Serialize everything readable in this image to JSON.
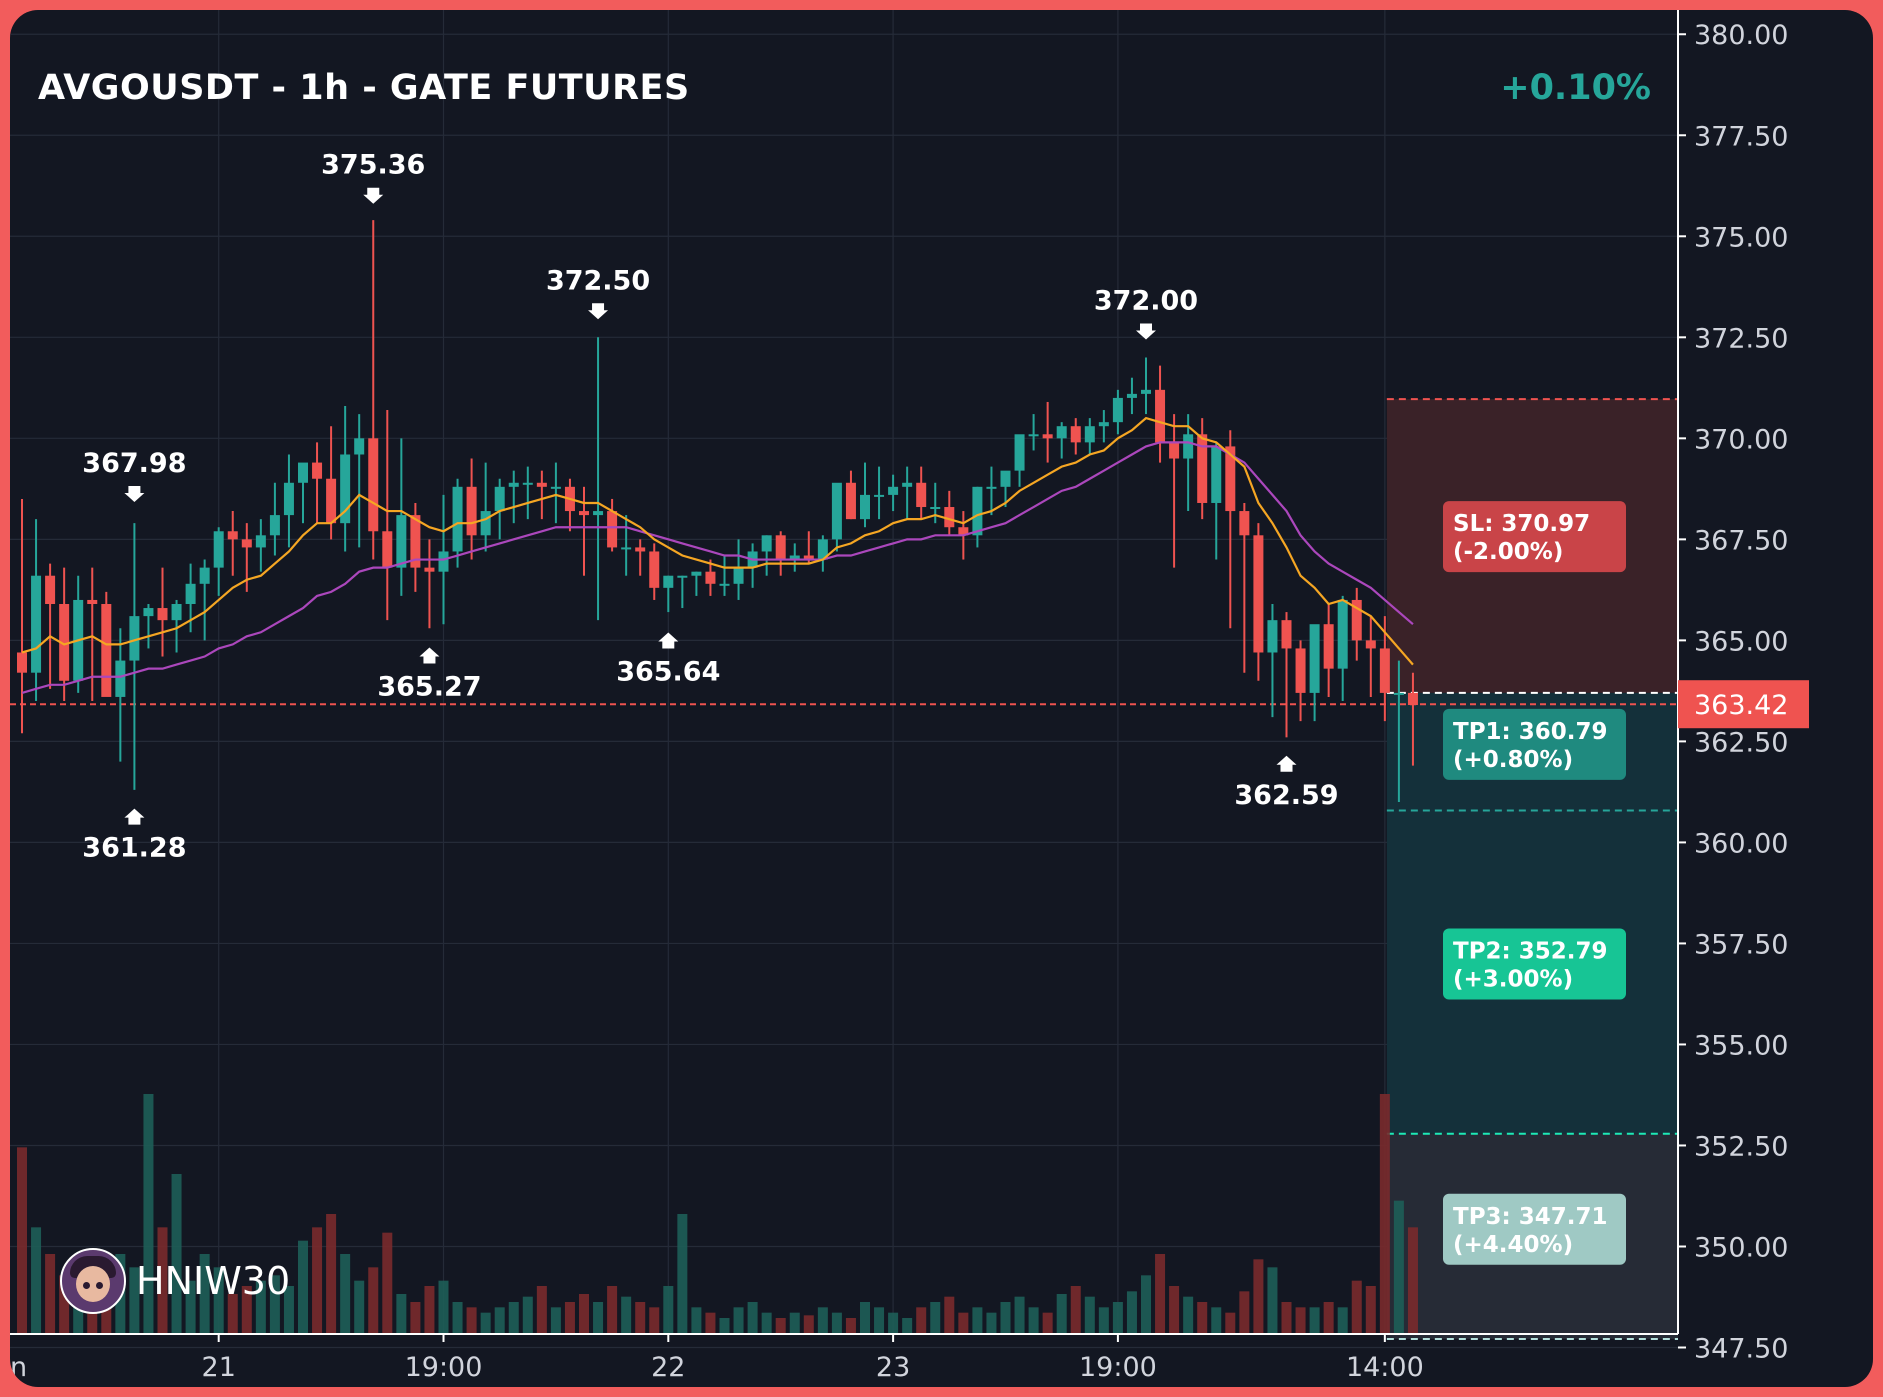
{
  "header": {
    "title": "AVGOUSDT - 1h - GATE FUTURES",
    "change": "+0.10%"
  },
  "watermark": {
    "username": "HNIW30",
    "icon": "avatar-icon"
  },
  "colors": {
    "background": "#131722",
    "frame": "#f25c5c",
    "up": "#26a69a",
    "down": "#ef5350",
    "ema_fast": "#f5a623",
    "ema_slow": "#ab47bc",
    "grid": "#252b38",
    "sl_zone": "#3a2228",
    "tp_zone": "#14303a",
    "tp3_zone": "#262b36"
  },
  "chart_data": {
    "type": "candlestick",
    "title": "AVGOUSDT - 1h - GATE FUTURES",
    "y_axis": {
      "ticks": [
        "380.00",
        "377.50",
        "375.00",
        "372.50",
        "370.00",
        "367.50",
        "365.00",
        "362.50",
        "360.00",
        "357.50",
        "355.00",
        "352.50",
        "350.00",
        "347.50"
      ],
      "ylim": [
        346.3,
        380.6
      ],
      "side": "right"
    },
    "x_axis": {
      "ticks": [
        {
          "label": "21",
          "bar": 14
        },
        {
          "label": "19:00",
          "bar": 30
        },
        {
          "label": "22",
          "bar": 46
        },
        {
          "label": "23",
          "bar": 62
        },
        {
          "label": "19:00",
          "bar": 78
        },
        {
          "label": "14:00",
          "bar": 97
        }
      ],
      "partial_first_label": "n"
    },
    "grid": true,
    "current_price": {
      "value": 363.42,
      "label": "363.42"
    },
    "annotations": [
      {
        "text": "367.98",
        "bar": 8,
        "price": 367.98,
        "type": "high"
      },
      {
        "text": "361.28",
        "bar": 8,
        "price": 361.28,
        "type": "low"
      },
      {
        "text": "375.36",
        "bar": 25,
        "price": 375.36,
        "type": "high"
      },
      {
        "text": "365.27",
        "bar": 29,
        "price": 365.27,
        "type": "low"
      },
      {
        "text": "372.50",
        "bar": 41,
        "price": 372.5,
        "type": "high"
      },
      {
        "text": "365.64",
        "bar": 46,
        "price": 365.64,
        "type": "low"
      },
      {
        "text": "372.00",
        "bar": 80,
        "price": 372.0,
        "type": "high"
      },
      {
        "text": "362.59",
        "bar": 90,
        "price": 362.59,
        "type": "low"
      }
    ],
    "levels": [
      {
        "label": "SL: 370.97",
        "sub": "(-2.00%)",
        "price": 370.97,
        "color": "#ef5350",
        "badge": "#c94448"
      },
      {
        "label": "TP1: 360.79",
        "sub": "(+0.80%)",
        "price": 360.79,
        "color": "#26a69a",
        "badge": "#1f8a7f"
      },
      {
        "label": "TP2: 352.79",
        "sub": "(+3.00%)",
        "price": 352.79,
        "color": "#1de9b6",
        "badge": "#17c595"
      },
      {
        "label": "TP3: 347.71",
        "sub": "(+4.40%)",
        "price": 347.71,
        "color": "#b2dfdb",
        "badge": "#9fc9c4"
      }
    ],
    "entry_price": 363.7,
    "series": [
      {
        "name": "open",
        "values": [
          364.7,
          364.2,
          366.6,
          365.9,
          364.0,
          366.0,
          365.9,
          363.6,
          364.5,
          365.6,
          365.8,
          365.5,
          365.9,
          366.4,
          366.8,
          367.7,
          367.5,
          367.3,
          367.6,
          368.1,
          368.9,
          369.4,
          369.0,
          367.9,
          369.6,
          370.0,
          367.7,
          366.8,
          368.1,
          366.8,
          366.7,
          367.2,
          368.8,
          367.6,
          368.2,
          368.8,
          368.9,
          368.9,
          368.8,
          368.8,
          368.2,
          368.1,
          368.2,
          367.3,
          367.3,
          367.2,
          366.3,
          366.6,
          366.6,
          366.7,
          366.4,
          366.4,
          366.8,
          367.2,
          367.6,
          367.0,
          367.1,
          367.0,
          367.5,
          368.9,
          368.0,
          368.6,
          368.6,
          368.8,
          368.9,
          368.3,
          368.3,
          367.8,
          367.6,
          368.8,
          368.8,
          369.2,
          370.1,
          370.1,
          370.0,
          370.3,
          369.9,
          370.3,
          370.4,
          371.0,
          371.1,
          371.2,
          369.9,
          369.5,
          370.1,
          368.4,
          369.8,
          368.2,
          367.6,
          364.7,
          365.5,
          364.8,
          363.7,
          365.4,
          364.3,
          366.0,
          365.0,
          364.8,
          363.7,
          363.7
        ]
      },
      {
        "name": "high",
        "values": [
          368.5,
          368.0,
          366.9,
          366.8,
          366.6,
          366.8,
          366.2,
          365.3,
          367.9,
          365.9,
          366.8,
          366.0,
          366.9,
          367.0,
          367.8,
          368.2,
          367.9,
          368.0,
          368.9,
          369.6,
          369.3,
          369.9,
          370.3,
          370.8,
          370.6,
          375.4,
          370.7,
          370.0,
          368.4,
          367.5,
          368.6,
          369.0,
          369.5,
          369.4,
          369.0,
          369.2,
          369.3,
          369.2,
          369.4,
          369.0,
          368.8,
          372.5,
          368.5,
          368.1,
          367.5,
          367.4,
          366.6,
          366.6,
          366.7,
          367.0,
          367.1,
          367.5,
          367.4,
          367.6,
          367.7,
          367.4,
          367.7,
          367.6,
          368.4,
          369.2,
          369.4,
          369.3,
          369.1,
          369.3,
          369.3,
          368.9,
          368.7,
          368.2,
          368.8,
          369.3,
          369.0,
          369.7,
          370.6,
          370.9,
          370.4,
          370.5,
          370.5,
          370.7,
          371.2,
          371.5,
          372.0,
          371.8,
          370.6,
          370.6,
          370.5,
          369.9,
          370.2,
          368.4,
          367.9,
          365.9,
          365.7,
          365.0,
          364.7,
          365.9,
          366.1,
          366.3,
          365.6,
          365.6,
          364.5,
          364.2
        ]
      },
      {
        "name": "low",
        "values": [
          362.7,
          363.5,
          363.8,
          363.5,
          363.7,
          363.5,
          363.8,
          362.0,
          361.3,
          364.8,
          364.6,
          364.7,
          365.2,
          365.0,
          366.1,
          366.6,
          366.2,
          366.7,
          367.1,
          367.3,
          367.9,
          367.9,
          367.5,
          367.2,
          367.3,
          367.0,
          365.5,
          366.1,
          366.2,
          365.3,
          365.4,
          366.8,
          367.0,
          367.2,
          367.5,
          367.9,
          368.0,
          368.0,
          367.9,
          367.7,
          366.6,
          365.5,
          367.2,
          366.6,
          366.6,
          366.0,
          365.7,
          365.8,
          366.1,
          366.1,
          366.1,
          366.0,
          366.3,
          366.6,
          366.6,
          366.7,
          366.9,
          366.7,
          367.2,
          368.0,
          367.8,
          368.0,
          368.2,
          368.0,
          368.0,
          367.9,
          367.6,
          367.0,
          367.3,
          368.1,
          368.3,
          368.8,
          369.7,
          369.4,
          369.5,
          369.6,
          369.6,
          369.9,
          370.1,
          370.6,
          370.6,
          369.4,
          366.8,
          368.2,
          368.0,
          367.0,
          365.3,
          364.2,
          364.0,
          363.1,
          362.6,
          363.0,
          363.0,
          363.6,
          363.5,
          364.5,
          363.6,
          363.0,
          361.0,
          361.9
        ]
      },
      {
        "name": "close",
        "values": [
          364.2,
          366.6,
          365.9,
          364.0,
          366.0,
          365.9,
          363.6,
          364.5,
          365.6,
          365.8,
          365.5,
          365.9,
          366.4,
          366.8,
          367.7,
          367.5,
          367.3,
          367.6,
          368.1,
          368.9,
          369.4,
          369.0,
          367.9,
          369.6,
          370.0,
          367.7,
          366.8,
          368.1,
          366.8,
          366.7,
          367.2,
          368.8,
          367.6,
          368.2,
          368.8,
          368.9,
          368.9,
          368.8,
          368.8,
          368.2,
          368.1,
          368.2,
          367.3,
          367.3,
          367.2,
          366.3,
          366.6,
          366.6,
          366.7,
          366.4,
          366.4,
          366.8,
          367.2,
          367.6,
          367.0,
          367.1,
          367.0,
          367.5,
          368.9,
          368.0,
          368.6,
          368.6,
          368.8,
          368.9,
          368.3,
          368.3,
          367.8,
          367.6,
          368.8,
          368.8,
          369.2,
          370.1,
          370.1,
          370.0,
          370.3,
          369.9,
          370.3,
          370.4,
          371.0,
          371.1,
          371.2,
          369.9,
          369.5,
          370.1,
          368.4,
          369.8,
          368.2,
          367.6,
          364.7,
          365.5,
          364.8,
          363.7,
          365.4,
          364.3,
          366.0,
          365.0,
          364.8,
          363.7,
          363.7,
          363.4
        ]
      },
      {
        "name": "volume",
        "values": [
          70,
          40,
          30,
          22,
          18,
          20,
          16,
          30,
          25,
          90,
          40,
          60,
          20,
          30,
          25,
          15,
          18,
          20,
          22,
          18,
          35,
          40,
          45,
          30,
          20,
          25,
          38,
          15,
          12,
          18,
          20,
          12,
          10,
          8,
          10,
          12,
          14,
          18,
          10,
          12,
          15,
          12,
          18,
          14,
          12,
          10,
          18,
          45,
          10,
          8,
          6,
          10,
          12,
          8,
          6,
          8,
          7,
          10,
          8,
          6,
          12,
          10,
          8,
          6,
          10,
          12,
          14,
          8,
          10,
          8,
          12,
          14,
          10,
          8,
          15,
          18,
          14,
          10,
          12,
          16,
          22,
          30,
          18,
          14,
          12,
          10,
          8,
          16,
          28,
          25,
          12,
          10,
          10,
          12,
          10,
          20,
          18,
          90,
          50,
          40
        ]
      },
      {
        "name": "ema_fast",
        "values": [
          364.7,
          364.8,
          365.1,
          364.9,
          365.0,
          365.1,
          364.9,
          364.9,
          365.0,
          365.1,
          365.2,
          365.3,
          365.5,
          365.7,
          366.0,
          366.3,
          366.5,
          366.6,
          366.9,
          367.2,
          367.6,
          367.9,
          367.9,
          368.2,
          368.6,
          368.4,
          368.2,
          368.2,
          368.0,
          367.8,
          367.7,
          367.9,
          367.9,
          368.0,
          368.2,
          368.3,
          368.4,
          368.5,
          368.6,
          368.5,
          368.4,
          368.4,
          368.2,
          368.0,
          367.8,
          367.5,
          367.3,
          367.1,
          367.0,
          366.9,
          366.8,
          366.8,
          366.8,
          366.9,
          366.9,
          366.9,
          366.9,
          367.0,
          367.3,
          367.4,
          367.6,
          367.7,
          367.9,
          368.0,
          368.0,
          368.1,
          368.0,
          367.9,
          368.1,
          368.2,
          368.4,
          368.7,
          368.9,
          369.1,
          369.3,
          369.4,
          369.6,
          369.7,
          370.0,
          370.2,
          370.5,
          370.4,
          370.3,
          370.3,
          370.0,
          369.9,
          369.6,
          369.3,
          368.4,
          367.9,
          367.3,
          366.6,
          366.3,
          365.9,
          366.0,
          365.8,
          365.6,
          365.2,
          364.8,
          364.4
        ]
      },
      {
        "name": "ema_slow",
        "values": [
          363.7,
          363.8,
          363.9,
          363.9,
          364.0,
          364.1,
          364.1,
          364.1,
          364.2,
          364.3,
          364.3,
          364.4,
          364.5,
          364.6,
          364.8,
          364.9,
          365.1,
          365.2,
          365.4,
          365.6,
          365.8,
          366.1,
          366.2,
          366.4,
          366.7,
          366.8,
          366.8,
          366.9,
          367.0,
          367.0,
          367.0,
          367.1,
          367.2,
          367.3,
          367.4,
          367.5,
          367.6,
          367.7,
          367.8,
          367.8,
          367.8,
          367.8,
          367.8,
          367.8,
          367.7,
          367.6,
          367.5,
          367.4,
          367.3,
          367.2,
          367.1,
          367.1,
          367.0,
          367.0,
          367.0,
          367.0,
          367.0,
          367.0,
          367.1,
          367.1,
          367.2,
          367.3,
          367.4,
          367.5,
          367.5,
          367.6,
          367.6,
          367.6,
          367.7,
          367.8,
          367.9,
          368.1,
          368.3,
          368.5,
          368.7,
          368.8,
          369.0,
          369.2,
          369.4,
          369.6,
          369.8,
          369.9,
          369.9,
          369.9,
          369.8,
          369.8,
          369.6,
          369.4,
          369.0,
          368.6,
          368.2,
          367.6,
          367.2,
          366.9,
          366.7,
          366.5,
          366.3,
          366.0,
          365.7,
          365.4
        ]
      }
    ]
  }
}
